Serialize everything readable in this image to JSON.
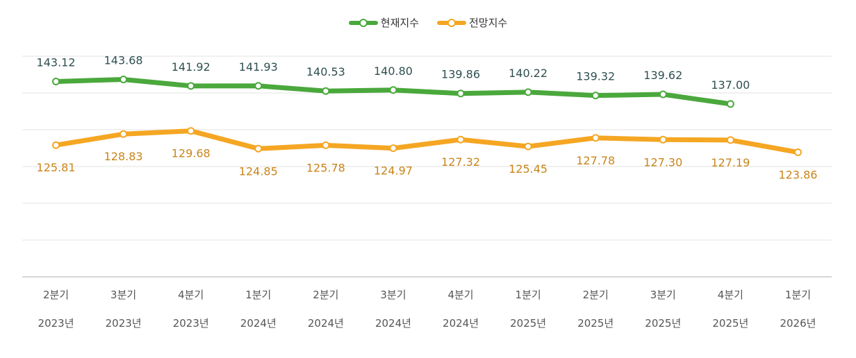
{
  "chart_data": {
    "type": "line",
    "categories": [
      [
        "2분기",
        "2023년"
      ],
      [
        "3분기",
        "2023년"
      ],
      [
        "4분기",
        "2023년"
      ],
      [
        "1분기",
        "2024년"
      ],
      [
        "2분기",
        "2024년"
      ],
      [
        "3분기",
        "2024년"
      ],
      [
        "4분기",
        "2024년"
      ],
      [
        "1분기",
        "2025년"
      ],
      [
        "2분기",
        "2025년"
      ],
      [
        "3분기",
        "2025년"
      ],
      [
        "4분기",
        "2025년"
      ],
      [
        "1분기",
        "2026년"
      ]
    ],
    "series": [
      {
        "name": "현재지수",
        "color": "#4aa83c",
        "label_color": "#2f4f4f",
        "label_position": "above",
        "values": [
          143.12,
          143.68,
          141.92,
          141.93,
          140.53,
          140.8,
          139.86,
          140.22,
          139.32,
          139.62,
          137.0,
          null
        ],
        "labels": [
          "143.12",
          "143.68",
          "141.92",
          "141.93",
          "140.53",
          "140.80",
          "139.86",
          "140.22",
          "139.32",
          "139.62",
          "137.00",
          ""
        ]
      },
      {
        "name": "전망지수",
        "color": "#f5a623",
        "label_color": "#c9851a",
        "label_position": "below",
        "values": [
          125.81,
          128.83,
          129.68,
          124.85,
          125.78,
          124.97,
          127.32,
          125.45,
          127.78,
          127.3,
          127.19,
          123.86
        ],
        "labels": [
          "125.81",
          "128.83",
          "129.68",
          "124.85",
          "125.78",
          "124.97",
          "127.32",
          "125.45",
          "127.78",
          "127.30",
          "127.19",
          "123.86"
        ]
      }
    ],
    "ylim": [
      90,
      160
    ],
    "yticks": [
      90,
      100,
      110,
      120,
      130,
      140,
      150
    ],
    "grid": true,
    "legend": "top-center",
    "title": "",
    "xlabel": "",
    "ylabel": ""
  }
}
